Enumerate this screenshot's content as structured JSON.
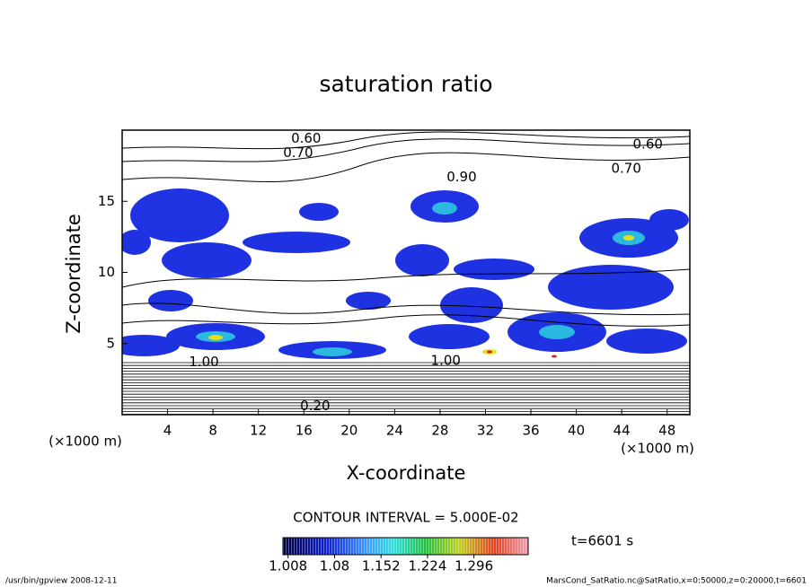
{
  "chart_data": {
    "type": "contour",
    "title": "saturation ratio",
    "xlabel": "X-coordinate",
    "ylabel": "Z-coordinate",
    "x_unit": "(×1000 m)",
    "xlim": [
      0,
      50
    ],
    "xticks": [
      4,
      8,
      12,
      16,
      20,
      24,
      28,
      32,
      36,
      40,
      44,
      48
    ],
    "ylim": [
      0,
      20
    ],
    "yticks": [
      5,
      10,
      15
    ],
    "contour_interval_text": "CONTOUR INTERVAL = 5.000E-02",
    "contour_labels": [
      {
        "x": 16.2,
        "y": 19.4,
        "text": "0.60"
      },
      {
        "x": 15.5,
        "y": 18.4,
        "text": "0.70"
      },
      {
        "x": 46.3,
        "y": 19.0,
        "text": "0.60"
      },
      {
        "x": 44.4,
        "y": 17.3,
        "text": "0.70"
      },
      {
        "x": 29.9,
        "y": 16.7,
        "text": "0.90"
      },
      {
        "x": 7.2,
        "y": 3.7,
        "text": "1.00"
      },
      {
        "x": 28.5,
        "y": 3.8,
        "text": "1.00"
      },
      {
        "x": 17.0,
        "y": 0.6,
        "text": "0.20"
      }
    ],
    "colorbar_lim": [
      1.0,
      1.38
    ],
    "colorbar_ticks": [
      1.008,
      1.08,
      1.152,
      1.224,
      1.296
    ],
    "time_text": "t=6601 s",
    "footer_left": "/usr/bin/gpview   2008-12-11",
    "footer_right": "MarsCond_SatRatio.nc@SatRatio,x=0:50000,z=0:20000,t=6601"
  }
}
